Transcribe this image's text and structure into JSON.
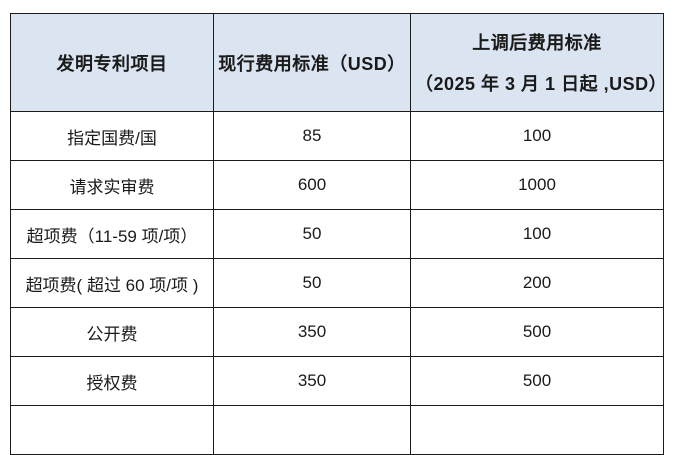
{
  "table": {
    "header_bg": "#dbe4f1",
    "border_color": "#1b1b1b",
    "headers": {
      "item": "发明专利项目",
      "current": "现行费用标准（USD）",
      "adjusted_line1": "上调后费用标准",
      "adjusted_line2": "（2025 年 3 月 1 日起 ,USD）"
    },
    "rows": [
      {
        "item": "指定国费/国",
        "current": "85",
        "adjusted": "100"
      },
      {
        "item": "请求实审费",
        "current": "600",
        "adjusted": "1000"
      },
      {
        "item": "超项费（11-59 项/项）",
        "current": "50",
        "adjusted": "100"
      },
      {
        "item": "超项费( 超过 60 项/项 )",
        "current": "50",
        "adjusted": "200"
      },
      {
        "item": "公开费",
        "current": "350",
        "adjusted": "500"
      },
      {
        "item": "授权费",
        "current": "350",
        "adjusted": "500"
      }
    ]
  }
}
